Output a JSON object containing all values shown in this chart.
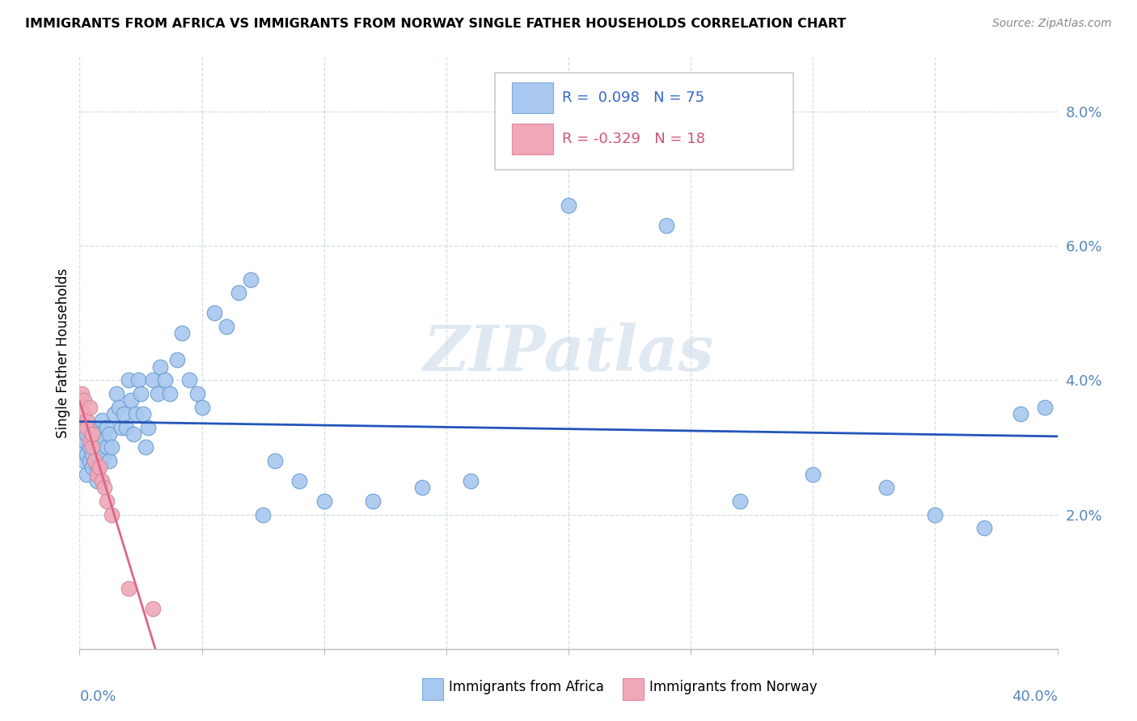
{
  "title": "IMMIGRANTS FROM AFRICA VS IMMIGRANTS FROM NORWAY SINGLE FATHER HOUSEHOLDS CORRELATION CHART",
  "source": "Source: ZipAtlas.com",
  "ylabel": "Single Father Households",
  "ytick_labels": [
    "2.0%",
    "4.0%",
    "6.0%",
    "8.0%"
  ],
  "ytick_values": [
    0.02,
    0.04,
    0.06,
    0.08
  ],
  "xlim": [
    0.0,
    0.4
  ],
  "ylim": [
    0.0,
    0.088
  ],
  "africa_R": 0.098,
  "africa_N": 75,
  "norway_R": -0.329,
  "norway_N": 18,
  "africa_color": "#a8c8f0",
  "norway_color": "#f0a8b8",
  "africa_line_color": "#2255bb",
  "norway_line_color": "#dd6688",
  "watermark": "ZIPatlas",
  "africa_x": [
    0.001,
    0.002,
    0.002,
    0.002,
    0.003,
    0.003,
    0.003,
    0.004,
    0.004,
    0.004,
    0.005,
    0.005,
    0.005,
    0.006,
    0.006,
    0.006,
    0.007,
    0.007,
    0.007,
    0.008,
    0.008,
    0.009,
    0.009,
    0.01,
    0.01,
    0.011,
    0.011,
    0.012,
    0.012,
    0.013,
    0.014,
    0.015,
    0.016,
    0.017,
    0.018,
    0.019,
    0.02,
    0.021,
    0.022,
    0.023,
    0.024,
    0.025,
    0.026,
    0.027,
    0.028,
    0.03,
    0.032,
    0.033,
    0.035,
    0.037,
    0.04,
    0.042,
    0.045,
    0.048,
    0.05,
    0.055,
    0.06,
    0.065,
    0.07,
    0.075,
    0.08,
    0.09,
    0.1,
    0.12,
    0.14,
    0.16,
    0.2,
    0.24,
    0.27,
    0.3,
    0.33,
    0.35,
    0.37,
    0.385,
    0.395
  ],
  "africa_y": [
    0.03,
    0.028,
    0.031,
    0.033,
    0.029,
    0.032,
    0.026,
    0.03,
    0.028,
    0.033,
    0.031,
    0.027,
    0.029,
    0.03,
    0.028,
    0.033,
    0.031,
    0.027,
    0.025,
    0.03,
    0.032,
    0.028,
    0.034,
    0.029,
    0.031,
    0.03,
    0.033,
    0.032,
    0.028,
    0.03,
    0.035,
    0.038,
    0.036,
    0.033,
    0.035,
    0.033,
    0.04,
    0.037,
    0.032,
    0.035,
    0.04,
    0.038,
    0.035,
    0.03,
    0.033,
    0.04,
    0.038,
    0.042,
    0.04,
    0.038,
    0.043,
    0.047,
    0.04,
    0.038,
    0.036,
    0.05,
    0.048,
    0.053,
    0.055,
    0.02,
    0.028,
    0.025,
    0.022,
    0.022,
    0.024,
    0.025,
    0.066,
    0.063,
    0.022,
    0.026,
    0.024,
    0.02,
    0.018,
    0.035,
    0.036
  ],
  "norway_x": [
    0.001,
    0.002,
    0.002,
    0.003,
    0.003,
    0.004,
    0.004,
    0.005,
    0.005,
    0.006,
    0.007,
    0.008,
    0.009,
    0.01,
    0.011,
    0.013,
    0.02,
    0.03
  ],
  "norway_y": [
    0.038,
    0.037,
    0.035,
    0.034,
    0.033,
    0.031,
    0.036,
    0.03,
    0.032,
    0.028,
    0.026,
    0.027,
    0.025,
    0.024,
    0.022,
    0.02,
    0.009,
    0.006
  ],
  "xtick_positions": [
    0.0,
    0.05,
    0.1,
    0.15,
    0.2,
    0.25,
    0.3,
    0.35,
    0.4
  ],
  "grid_color": "#d0dde8",
  "spine_color": "#bbbbbb"
}
